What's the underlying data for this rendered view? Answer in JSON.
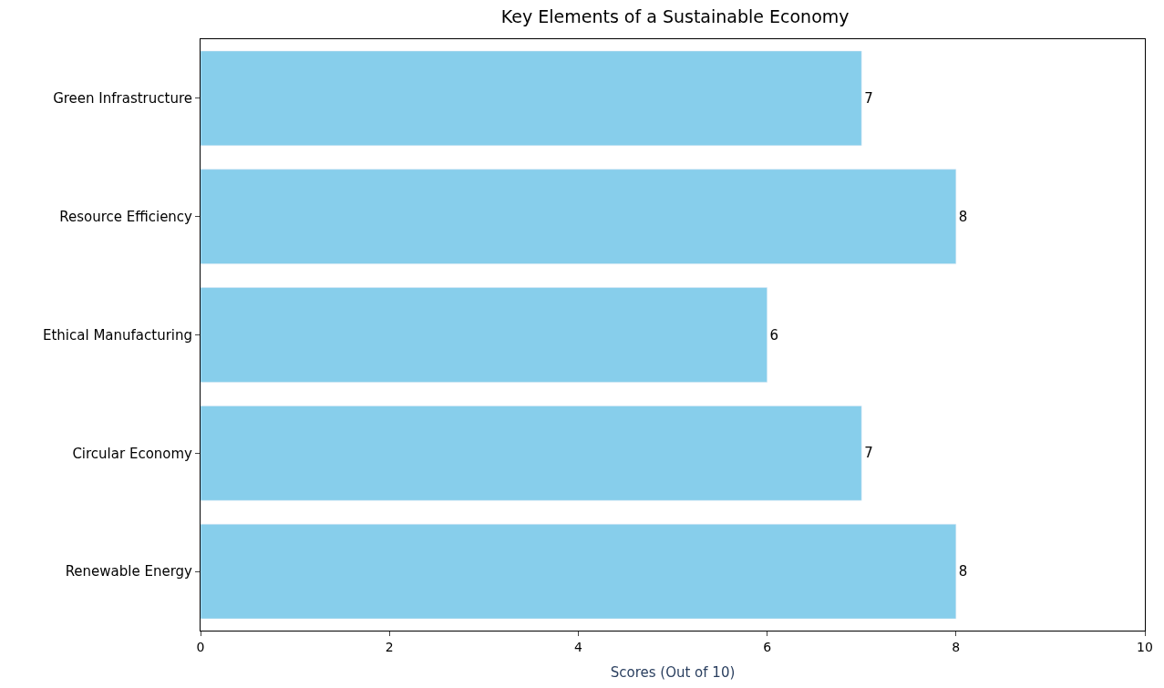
{
  "chart_data": {
    "type": "bar",
    "orientation": "horizontal",
    "title": "Key Elements of a Sustainable Economy",
    "xlabel": "Scores (Out of 10)",
    "categories": [
      "Green Infrastructure",
      "Resource Efficiency",
      "Ethical Manufacturing",
      "Circular Economy",
      "Renewable Energy"
    ],
    "values": [
      7,
      8,
      6,
      7,
      8
    ],
    "color": "#87ceeb",
    "xlim": [
      0,
      10
    ],
    "xticks": [
      0,
      2,
      4,
      6,
      8,
      10
    ],
    "grid": false,
    "data_labels": true
  }
}
